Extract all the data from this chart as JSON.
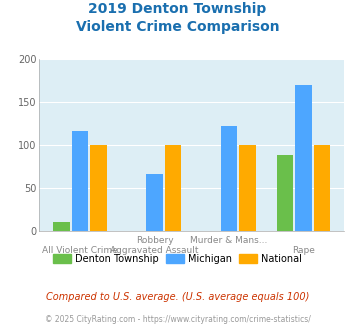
{
  "title_line1": "2019 Denton Township",
  "title_line2": "Violent Crime Comparison",
  "title_color": "#1a6faf",
  "cat_labels_top": [
    "",
    "Robbery",
    "Murder & Mans...",
    ""
  ],
  "cat_labels_bot": [
    "All Violent Crime",
    "Aggravated Assault",
    "",
    "Rape"
  ],
  "groups": {
    "Denton Township": [
      10,
      0,
      0,
      88
    ],
    "Michigan": [
      116,
      66,
      122,
      170
    ],
    "National": [
      100,
      100,
      100,
      100
    ]
  },
  "bar_colors": {
    "Denton Township": "#6abf4b",
    "Michigan": "#4da6ff",
    "National": "#ffaa00"
  },
  "ylim": [
    0,
    200
  ],
  "yticks": [
    0,
    50,
    100,
    150,
    200
  ],
  "plot_bg_color": "#ddeef5",
  "footer_text": "Compared to U.S. average. (U.S. average equals 100)",
  "footer_color": "#cc3300",
  "credit_text": "© 2025 CityRating.com - https://www.cityrating.com/crime-statistics/",
  "credit_color": "#999999"
}
